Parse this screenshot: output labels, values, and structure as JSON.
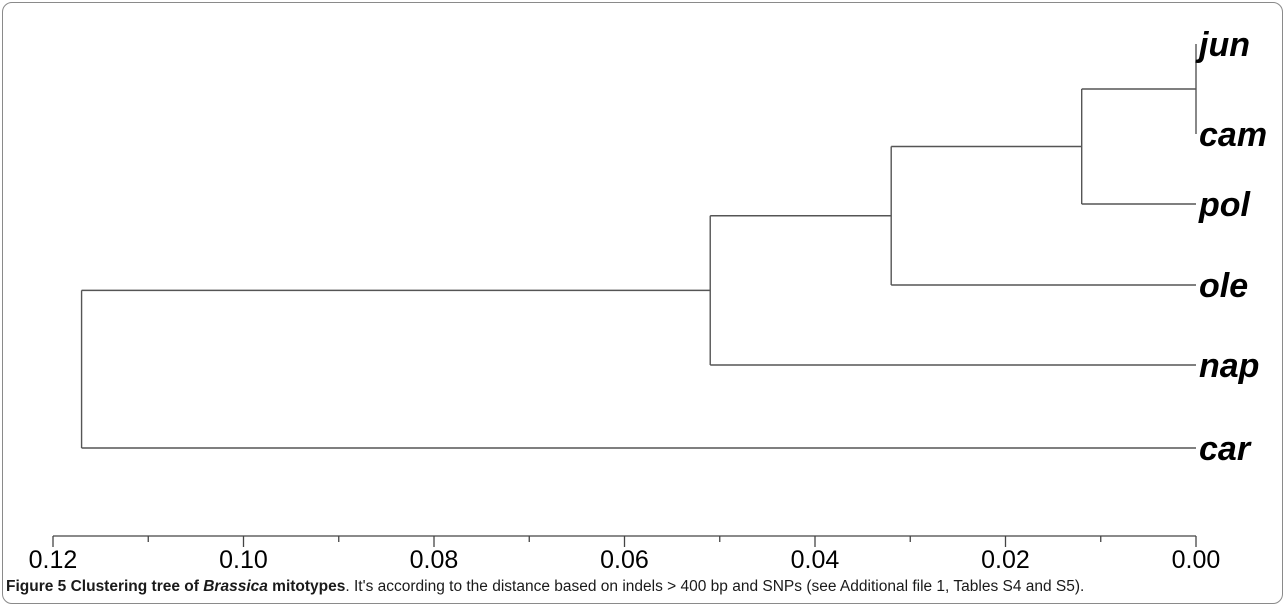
{
  "chart_data": {
    "type": "dendrogram",
    "axis": {
      "ticks": [
        0.12,
        0.1,
        0.08,
        0.06,
        0.04,
        0.02,
        0.0
      ],
      "tick_labels": [
        "0.12",
        "0.10",
        "0.08",
        "0.06",
        "0.04",
        "0.02",
        "0.00"
      ],
      "xlim": [
        0.12,
        0.0
      ],
      "minor_step": 0.01
    },
    "leaves": [
      {
        "id": "jun",
        "label": "jun"
      },
      {
        "id": "cam",
        "label": "cam"
      },
      {
        "id": "pol",
        "label": "pol"
      },
      {
        "id": "ole",
        "label": "ole"
      },
      {
        "id": "nap",
        "label": "nap"
      },
      {
        "id": "car",
        "label": "car"
      }
    ],
    "merges": [
      {
        "id": "n1",
        "children": [
          "jun",
          "cam"
        ],
        "height": 0.0
      },
      {
        "id": "n2",
        "children": [
          "n1",
          "pol"
        ],
        "height": 0.012
      },
      {
        "id": "n3",
        "children": [
          "n2",
          "ole"
        ],
        "height": 0.032
      },
      {
        "id": "n4",
        "children": [
          "n3",
          "nap"
        ],
        "height": 0.051
      },
      {
        "id": "n5",
        "children": [
          "n4",
          "car"
        ],
        "height": 0.117
      }
    ]
  },
  "caption": {
    "title_prefix": "Figure 5 Clustering tree of ",
    "title_italic": "Brassica",
    "title_suffix": " mitotypes",
    "text": ". It's according to the distance based on indels > 400 bp and SNPs (see Additional file 1, Tables S4 and S5)."
  }
}
